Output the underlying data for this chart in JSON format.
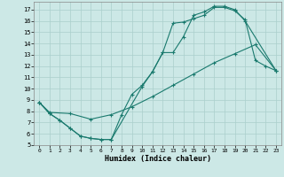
{
  "xlabel": "Humidex (Indice chaleur)",
  "xlim": [
    -0.5,
    23.5
  ],
  "ylim": [
    5,
    17.7
  ],
  "yticks": [
    5,
    6,
    7,
    8,
    9,
    10,
    11,
    12,
    13,
    14,
    15,
    16,
    17
  ],
  "xticks": [
    0,
    1,
    2,
    3,
    4,
    5,
    6,
    7,
    8,
    9,
    10,
    11,
    12,
    13,
    14,
    15,
    16,
    17,
    18,
    19,
    20,
    21,
    22,
    23
  ],
  "line_color": "#1a7a6e",
  "bg_color": "#cce8e6",
  "grid_color": "#aacfcc",
  "line1_x": [
    0,
    1,
    2,
    3,
    4,
    5,
    6,
    7,
    10,
    11,
    12,
    13,
    14,
    15,
    16,
    17,
    18,
    19,
    20,
    21,
    22,
    23
  ],
  "line1_y": [
    8.8,
    7.8,
    7.2,
    6.5,
    5.8,
    5.6,
    5.5,
    5.5,
    10.2,
    11.5,
    13.2,
    15.8,
    15.9,
    16.2,
    16.5,
    17.2,
    17.2,
    16.9,
    16.1,
    12.5,
    12.0,
    11.6
  ],
  "line2_x": [
    0,
    1,
    2,
    3,
    4,
    5,
    6,
    7,
    8,
    9,
    10,
    11,
    12,
    13,
    14,
    15,
    16,
    17,
    18,
    19,
    20,
    23
  ],
  "line2_y": [
    8.8,
    7.8,
    7.2,
    6.5,
    5.8,
    5.6,
    5.5,
    5.5,
    7.7,
    9.5,
    10.3,
    11.5,
    13.2,
    13.2,
    14.6,
    16.5,
    16.8,
    17.3,
    17.3,
    17.0,
    16.0,
    11.6
  ],
  "line3_x": [
    0,
    1,
    3,
    5,
    7,
    9,
    11,
    13,
    15,
    17,
    19,
    21,
    23
  ],
  "line3_y": [
    8.8,
    7.9,
    7.8,
    7.3,
    7.7,
    8.4,
    9.3,
    10.3,
    11.3,
    12.3,
    13.1,
    13.9,
    11.6
  ]
}
